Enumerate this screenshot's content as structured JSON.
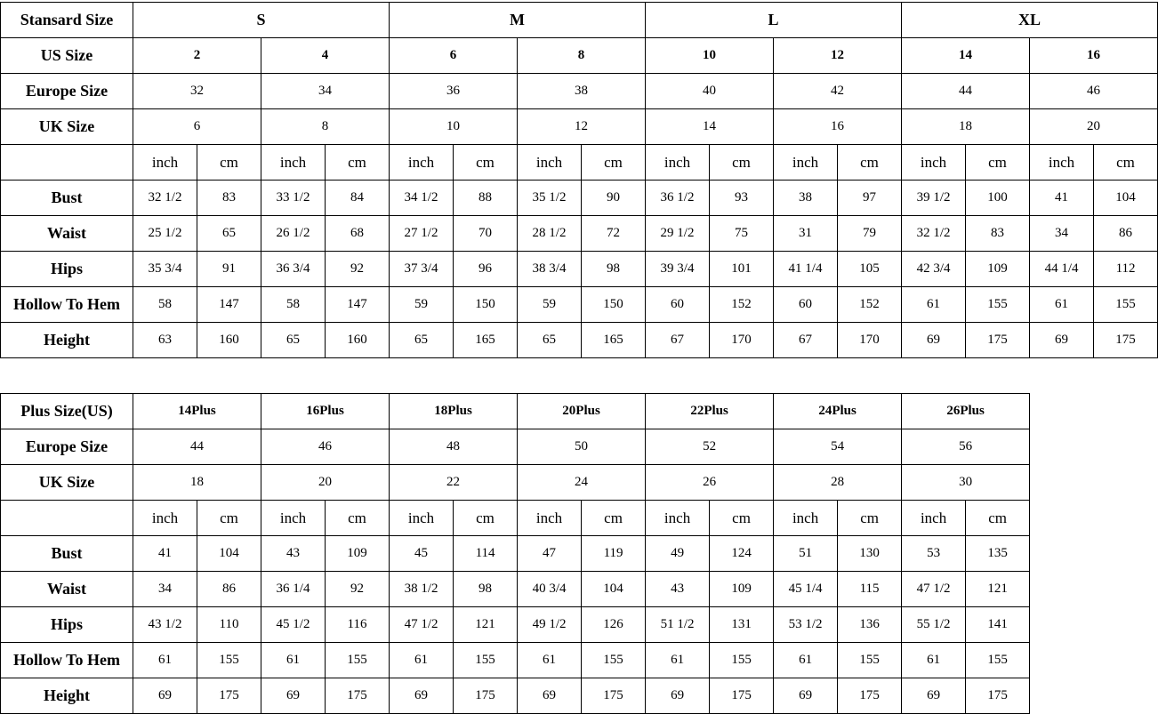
{
  "standard": {
    "groups_label": "Stansard Size",
    "groups": [
      "S",
      "M",
      "L",
      "XL"
    ],
    "us_label": "US Size",
    "us": [
      "2",
      "4",
      "6",
      "8",
      "10",
      "12",
      "14",
      "16"
    ],
    "europe_label": "Europe Size",
    "europe": [
      "32",
      "34",
      "36",
      "38",
      "40",
      "42",
      "44",
      "46"
    ],
    "uk_label": "UK Size",
    "uk": [
      "6",
      "8",
      "10",
      "12",
      "14",
      "16",
      "18",
      "20"
    ],
    "units": [
      "inch",
      "cm"
    ],
    "measures": [
      {
        "label": "Bust",
        "values": [
          "32 1/2",
          "83",
          "33 1/2",
          "84",
          "34 1/2",
          "88",
          "35 1/2",
          "90",
          "36 1/2",
          "93",
          "38",
          "97",
          "39 1/2",
          "100",
          "41",
          "104"
        ]
      },
      {
        "label": "Waist",
        "values": [
          "25 1/2",
          "65",
          "26 1/2",
          "68",
          "27 1/2",
          "70",
          "28 1/2",
          "72",
          "29 1/2",
          "75",
          "31",
          "79",
          "32 1/2",
          "83",
          "34",
          "86"
        ]
      },
      {
        "label": "Hips",
        "values": [
          "35 3/4",
          "91",
          "36 3/4",
          "92",
          "37 3/4",
          "96",
          "38 3/4",
          "98",
          "39 3/4",
          "101",
          "41 1/4",
          "105",
          "42 3/4",
          "109",
          "44 1/4",
          "112"
        ]
      },
      {
        "label": "Hollow To Hem",
        "values": [
          "58",
          "147",
          "58",
          "147",
          "59",
          "150",
          "59",
          "150",
          "60",
          "152",
          "60",
          "152",
          "61",
          "155",
          "61",
          "155"
        ]
      },
      {
        "label": "Height",
        "values": [
          "63",
          "160",
          "65",
          "160",
          "65",
          "165",
          "65",
          "165",
          "67",
          "170",
          "67",
          "170",
          "69",
          "175",
          "69",
          "175"
        ]
      }
    ]
  },
  "plus": {
    "us_label": "Plus Size(US)",
    "us": [
      "14Plus",
      "16Plus",
      "18Plus",
      "20Plus",
      "22Plus",
      "24Plus",
      "26Plus"
    ],
    "europe_label": "Europe Size",
    "europe": [
      "44",
      "46",
      "48",
      "50",
      "52",
      "54",
      "56"
    ],
    "uk_label": "UK Size",
    "uk": [
      "18",
      "20",
      "22",
      "24",
      "26",
      "28",
      "30"
    ],
    "units": [
      "inch",
      "cm"
    ],
    "measures": [
      {
        "label": "Bust",
        "values": [
          "41",
          "104",
          "43",
          "109",
          "45",
          "114",
          "47",
          "119",
          "49",
          "124",
          "51",
          "130",
          "53",
          "135"
        ]
      },
      {
        "label": "Waist",
        "values": [
          "34",
          "86",
          "36 1/4",
          "92",
          "38 1/2",
          "98",
          "40 3/4",
          "104",
          "43",
          "109",
          "45 1/4",
          "115",
          "47 1/2",
          "121"
        ]
      },
      {
        "label": "Hips",
        "values": [
          "43 1/2",
          "110",
          "45 1/2",
          "116",
          "47 1/2",
          "121",
          "49 1/2",
          "126",
          "51 1/2",
          "131",
          "53 1/2",
          "136",
          "55 1/2",
          "141"
        ]
      },
      {
        "label": "Hollow To Hem",
        "values": [
          "61",
          "155",
          "61",
          "155",
          "61",
          "155",
          "61",
          "155",
          "61",
          "155",
          "61",
          "155",
          "61",
          "155"
        ]
      },
      {
        "label": "Height",
        "values": [
          "69",
          "175",
          "69",
          "175",
          "69",
          "175",
          "69",
          "175",
          "69",
          "175",
          "69",
          "175",
          "69",
          "175"
        ]
      }
    ]
  }
}
